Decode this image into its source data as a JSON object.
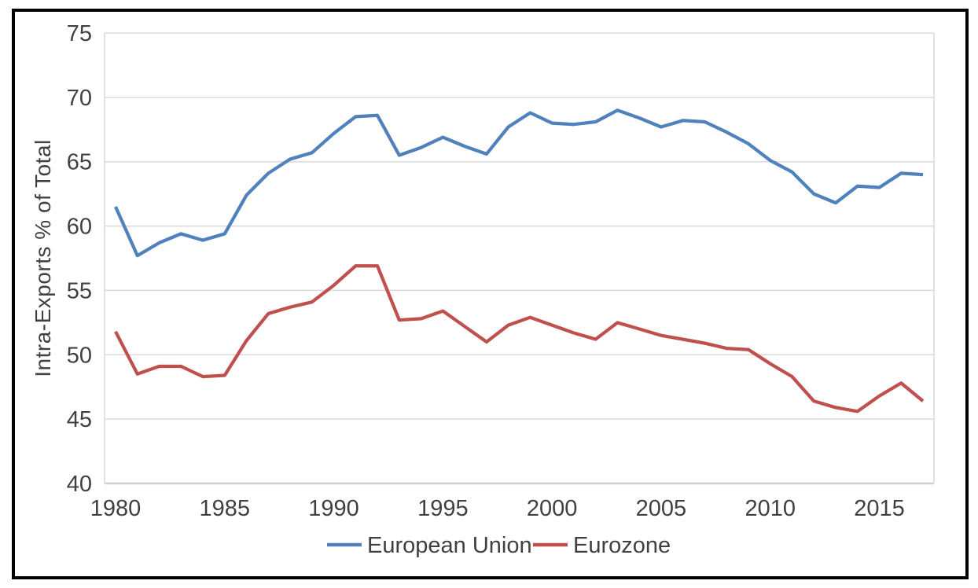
{
  "colors": {
    "eu_line": "#4F81BD",
    "eurozone_line": "#C0504D",
    "gridline": "#D9D9D9",
    "axis_line": "#D0D0D0",
    "axis_text": "#404040",
    "frame": "#000000",
    "background": "#FFFFFF"
  },
  "legend": {
    "eu_label": "European Union",
    "eurozone_label": "Eurozone"
  },
  "chart_data": {
    "type": "line",
    "title": "",
    "xlabel": "",
    "ylabel": "Intra-Exports % of Total",
    "ylim": [
      40,
      75
    ],
    "y_ticks": [
      40,
      45,
      50,
      55,
      60,
      65,
      70,
      75
    ],
    "x_ticks": [
      1980,
      1985,
      1990,
      1995,
      2000,
      2005,
      2010,
      2015
    ],
    "grid": "horizontal",
    "legend_position": "bottom",
    "x": [
      1980,
      1981,
      1982,
      1983,
      1984,
      1985,
      1986,
      1987,
      1988,
      1989,
      1990,
      1991,
      1992,
      1993,
      1994,
      1995,
      1996,
      1997,
      1998,
      1999,
      2000,
      2001,
      2002,
      2003,
      2004,
      2005,
      2006,
      2007,
      2008,
      2009,
      2010,
      2011,
      2012,
      2013,
      2014,
      2015,
      2016,
      2017
    ],
    "series": [
      {
        "name": "European Union",
        "color": "#4F81BD",
        "values": [
          61.5,
          57.7,
          58.7,
          59.4,
          58.9,
          59.4,
          62.4,
          64.1,
          65.2,
          65.7,
          67.2,
          68.5,
          68.6,
          65.5,
          66.1,
          66.9,
          66.2,
          65.6,
          67.7,
          68.8,
          68.0,
          67.9,
          68.1,
          69.0,
          68.4,
          67.7,
          68.2,
          68.1,
          67.3,
          66.4,
          65.1,
          64.2,
          62.5,
          61.8,
          63.1,
          63.0,
          64.1,
          64.0
        ]
      },
      {
        "name": "Eurozone",
        "color": "#C0504D",
        "values": [
          51.8,
          48.5,
          49.1,
          49.1,
          48.3,
          48.4,
          51.1,
          53.2,
          53.7,
          54.1,
          55.4,
          56.9,
          56.9,
          52.7,
          52.8,
          53.4,
          52.2,
          51.0,
          52.3,
          52.9,
          52.3,
          51.7,
          51.2,
          52.5,
          52.0,
          51.5,
          51.2,
          50.9,
          50.5,
          50.4,
          49.3,
          48.3,
          46.4,
          45.9,
          45.6,
          46.8,
          47.8,
          46.4
        ]
      }
    ]
  }
}
